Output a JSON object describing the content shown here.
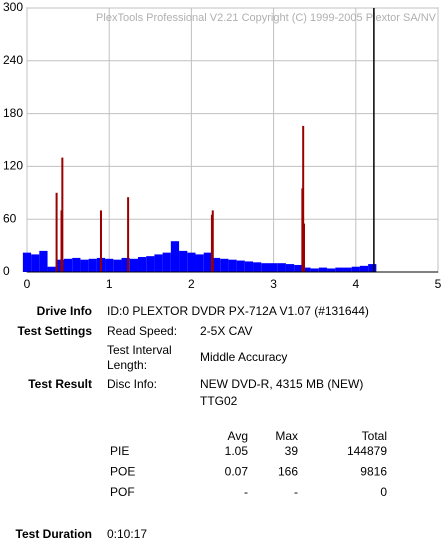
{
  "chart_data": {
    "type": "bar",
    "watermark": "PlexTools Professional V2.21 Copyright (C) 1999-2005 Plextor SA/NV",
    "xlim": [
      0,
      5
    ],
    "xticks": [
      0,
      1,
      2,
      3,
      4,
      5
    ],
    "ylim": [
      0,
      300
    ],
    "yticks": [
      0,
      60,
      120,
      180,
      240,
      300
    ],
    "grid": true,
    "disc_end": 4.22,
    "series": [
      {
        "color": "#0000ff",
        "x": [
          0,
          0.1,
          0.2,
          0.3,
          0.4,
          0.5,
          0.6,
          0.7,
          0.8,
          0.9,
          1.0,
          1.1,
          1.2,
          1.3,
          1.4,
          1.5,
          1.6,
          1.7,
          1.8,
          1.9,
          2.0,
          2.1,
          2.2,
          2.3,
          2.4,
          2.5,
          2.6,
          2.7,
          2.8,
          2.9,
          3.0,
          3.1,
          3.2,
          3.3,
          3.4,
          3.5,
          3.6,
          3.7,
          3.8,
          3.9,
          4.0,
          4.1,
          4.2
        ],
        "values": [
          22,
          20,
          24,
          6,
          14,
          15,
          16,
          14,
          15,
          16,
          15,
          14,
          16,
          15,
          17,
          18,
          20,
          22,
          35,
          24,
          22,
          20,
          22,
          16,
          15,
          14,
          13,
          12,
          11,
          10,
          10,
          10,
          9,
          8,
          5,
          4,
          5,
          4,
          5,
          5,
          6,
          7,
          9
        ]
      },
      {
        "color": "#990000",
        "x": [
          0.36,
          0.42,
          0.43,
          0.9,
          1.23,
          2.25,
          2.26,
          3.35,
          3.36,
          3.37
        ],
        "values": [
          90,
          70,
          130,
          70,
          85,
          65,
          70,
          95,
          166,
          55
        ]
      }
    ]
  },
  "info": {
    "drive_info": {
      "label": "Drive Info",
      "value": "ID:0 PLEXTOR DVDR PX-712A V1.07 (#131644)"
    },
    "test_settings": {
      "label": "Test Settings",
      "read_speed_label": "Read Speed:",
      "read_speed": "2-5X CAV",
      "interval_label": [
        "Test Interval",
        "Length:"
      ],
      "interval": "Middle Accuracy"
    },
    "test_result": {
      "label": "Test Result",
      "disc_info_label": "Disc Info:",
      "disc_info": [
        "NEW DVD-R, 4315 MB (NEW)",
        "TTG02"
      ]
    },
    "stats": {
      "columns": [
        "Avg",
        "Max",
        "Total"
      ],
      "rows": [
        {
          "name": "PIE",
          "values": [
            "1.05",
            "39",
            "144879"
          ]
        },
        {
          "name": "POE",
          "values": [
            "0.07",
            "166",
            "9816"
          ]
        },
        {
          "name": "POF",
          "values": [
            "-",
            "-",
            "0"
          ]
        }
      ]
    },
    "test_duration": {
      "label": "Test Duration",
      "value": "0:10:17"
    }
  }
}
